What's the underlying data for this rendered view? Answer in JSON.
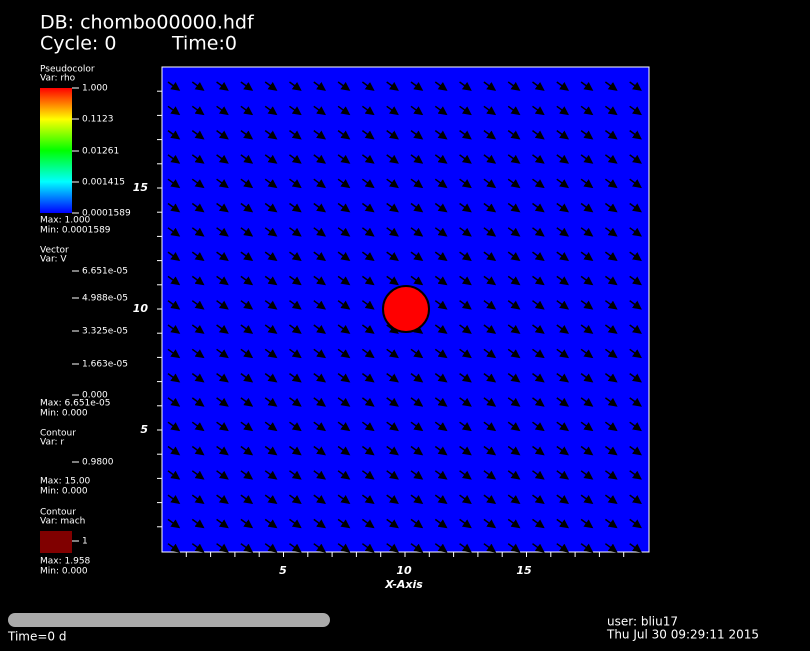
{
  "header": {
    "db": "DB: chombo00000.hdf",
    "cycle": "Cycle: 0",
    "time": "Time:0"
  },
  "legends": [
    {
      "title": "Pseudocolor",
      "var": "Var: rho",
      "labels": [
        "1.000",
        "0.1123",
        "0.01261",
        "0.001415",
        "0.0001589"
      ],
      "max": "Max:  1.000",
      "min": "Min:  0.0001589"
    },
    {
      "title": "Vector",
      "var": "Var: V",
      "labels": [
        "6.651e-05",
        "4.988e-05",
        "3.325e-05",
        "1.663e-05",
        "0.000"
      ],
      "max": "Max:  6.651e-05",
      "min": "Min:  0.000"
    },
    {
      "title": "Contour",
      "var": "Var: r",
      "labels": [
        "0.9800"
      ],
      "max": "Max:  15.00",
      "min": "Min:  0.000"
    },
    {
      "title": "Contour",
      "var": "Var: mach",
      "labels": [
        "1"
      ],
      "max": "Max:  1.958",
      "min": "Min:  0.000"
    }
  ],
  "plot": {
    "x_axis_title": "X-Axis",
    "x_ticks": [
      "5",
      "10",
      "15"
    ],
    "y_ticks": [
      "15",
      "10",
      "5"
    ]
  },
  "footer": {
    "time": "Time=0 d",
    "user": "user: bliu17",
    "date": "Thu Jul 30 09:29:11 2015"
  }
}
